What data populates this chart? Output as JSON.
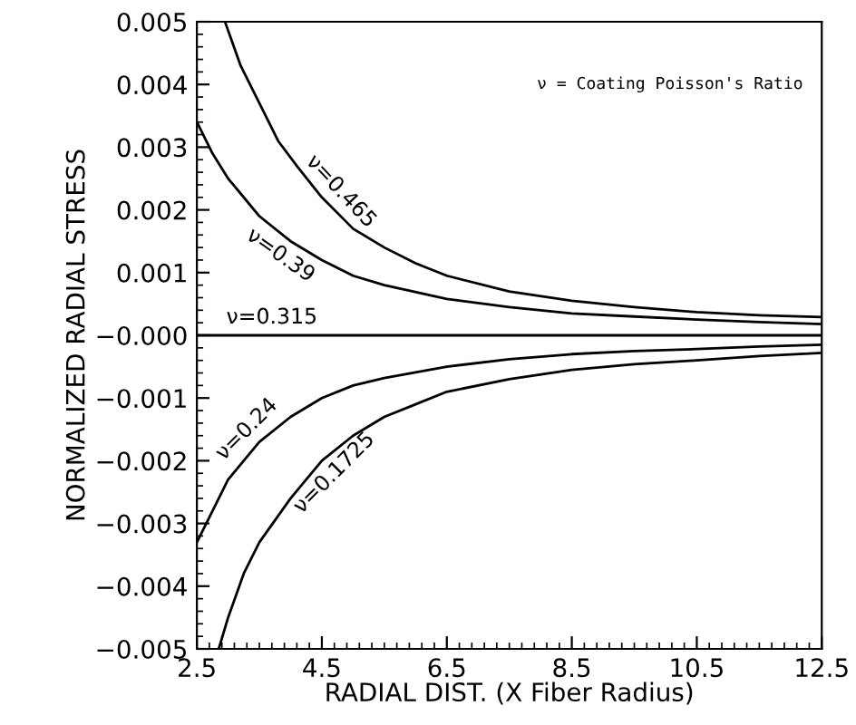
{
  "chart_data": {
    "type": "line",
    "xlabel": "RADIAL DIST. (X Fiber Radius)",
    "ylabel": "NORMALIZED RADIAL STRESS",
    "xlim": [
      2.5,
      12.5
    ],
    "xticks": [
      2.5,
      4.5,
      6.5,
      8.5,
      10.5,
      12.5
    ],
    "ylim": [
      -0.005,
      0.005
    ],
    "yticks": [
      {
        "value": -0.005,
        "label": "−0.005"
      },
      {
        "value": -0.004,
        "label": "−0.004"
      },
      {
        "value": -0.003,
        "label": "−0.003"
      },
      {
        "value": -0.002,
        "label": "−0.002"
      },
      {
        "value": -0.001,
        "label": "−0.001"
      },
      {
        "value": 0,
        "label": "−0.000"
      },
      {
        "value": 0.001,
        "label": "0.001"
      },
      {
        "value": 0.002,
        "label": "0.002"
      },
      {
        "value": 0.003,
        "label": "0.003"
      },
      {
        "value": 0.004,
        "label": "0.004"
      },
      {
        "value": 0.005,
        "label": "0.005"
      }
    ],
    "grid": false,
    "legend": "left",
    "line_style": "solid",
    "marker": "none",
    "series": [
      {
        "name": "ν=0.465",
        "color": "#000000",
        "x": [
          2.95,
          3.2,
          3.5,
          3.8,
          4.1,
          4.5,
          5.0,
          5.5,
          6.0,
          6.5,
          7.5,
          8.5,
          9.5,
          10.5,
          11.5,
          12.5
        ],
        "values": [
          0.005,
          0.0043,
          0.0037,
          0.0031,
          0.0027,
          0.0022,
          0.0017,
          0.0014,
          0.00115,
          0.00095,
          0.0007,
          0.00055,
          0.00045,
          0.00037,
          0.00032,
          0.00029
        ]
      },
      {
        "name": "ν=0.39",
        "color": "#000000",
        "x": [
          2.5,
          2.75,
          3.0,
          3.25,
          3.5,
          4.0,
          4.5,
          5.0,
          5.5,
          6.5,
          7.5,
          8.5,
          9.5,
          10.5,
          11.5,
          12.5
        ],
        "values": [
          0.0034,
          0.0029,
          0.0025,
          0.0022,
          0.0019,
          0.0015,
          0.0012,
          0.00095,
          0.0008,
          0.00058,
          0.00045,
          0.00035,
          0.0003,
          0.00025,
          0.00021,
          0.00018
        ]
      },
      {
        "name": "ν=0.315",
        "color": "#000000",
        "x": [
          2.5,
          12.5
        ],
        "values": [
          0,
          0
        ]
      },
      {
        "name": "ν=0.24",
        "color": "#000000",
        "x": [
          2.5,
          2.75,
          3.0,
          3.25,
          3.5,
          4.0,
          4.5,
          5.0,
          5.5,
          6.5,
          7.5,
          8.5,
          9.5,
          10.5,
          11.5,
          12.5
        ],
        "values": [
          -0.0033,
          -0.0028,
          -0.0023,
          -0.002,
          -0.0017,
          -0.0013,
          -0.001,
          -0.0008,
          -0.00068,
          -0.0005,
          -0.00038,
          -0.0003,
          -0.00025,
          -0.00022,
          -0.00018,
          -0.00015
        ]
      },
      {
        "name": "ν=0.1725",
        "color": "#000000",
        "x": [
          2.85,
          3.0,
          3.25,
          3.5,
          4.0,
          4.5,
          5.0,
          5.5,
          6.0,
          6.5,
          7.5,
          8.5,
          9.5,
          10.5,
          11.5,
          12.5
        ],
        "values": [
          -0.005,
          -0.0045,
          -0.0038,
          -0.0033,
          -0.0026,
          -0.002,
          -0.0016,
          -0.0013,
          -0.0011,
          -0.0009,
          -0.0007,
          -0.00055,
          -0.00046,
          -0.0004,
          -0.00033,
          -0.00028
        ]
      }
    ],
    "annotations": [
      "ν = Coating Poisson's Ratio"
    ]
  }
}
